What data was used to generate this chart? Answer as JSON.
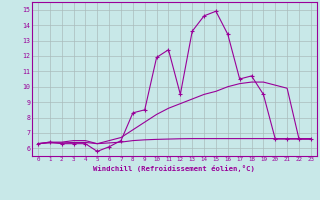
{
  "xlabel": "Windchill (Refroidissement éolien,°C)",
  "bg_color": "#c8e8e8",
  "line_color": "#990099",
  "grid_color": "#aabcbc",
  "x_hours": [
    0,
    1,
    2,
    3,
    4,
    5,
    6,
    7,
    8,
    9,
    10,
    11,
    12,
    13,
    14,
    15,
    16,
    17,
    18,
    19,
    20,
    21,
    22,
    23
  ],
  "curve1_y": [
    6.3,
    6.4,
    6.3,
    6.3,
    6.3,
    5.8,
    6.1,
    6.5,
    8.3,
    8.5,
    11.9,
    12.4,
    9.5,
    13.6,
    14.6,
    14.9,
    13.4,
    10.5,
    10.7,
    9.5,
    6.6,
    6.6,
    6.6,
    6.6
  ],
  "curve2_y": [
    6.3,
    6.4,
    6.4,
    6.5,
    6.5,
    6.3,
    6.5,
    6.7,
    7.2,
    7.7,
    8.2,
    8.6,
    8.9,
    9.2,
    9.5,
    9.7,
    10.0,
    10.2,
    10.3,
    10.3,
    10.1,
    9.9,
    6.6,
    6.6
  ],
  "curve3_y": [
    6.3,
    6.35,
    6.35,
    6.38,
    6.38,
    6.3,
    6.35,
    6.4,
    6.5,
    6.55,
    6.58,
    6.6,
    6.62,
    6.63,
    6.63,
    6.63,
    6.63,
    6.63,
    6.63,
    6.63,
    6.63,
    6.63,
    6.63,
    6.63
  ],
  "ylim": [
    5.5,
    15.5
  ],
  "yticks": [
    6,
    7,
    8,
    9,
    10,
    11,
    12,
    13,
    14,
    15
  ],
  "xlim": [
    -0.5,
    23.5
  ],
  "xticks": [
    0,
    1,
    2,
    3,
    4,
    5,
    6,
    7,
    8,
    9,
    10,
    11,
    12,
    13,
    14,
    15,
    16,
    17,
    18,
    19,
    20,
    21,
    22,
    23
  ]
}
